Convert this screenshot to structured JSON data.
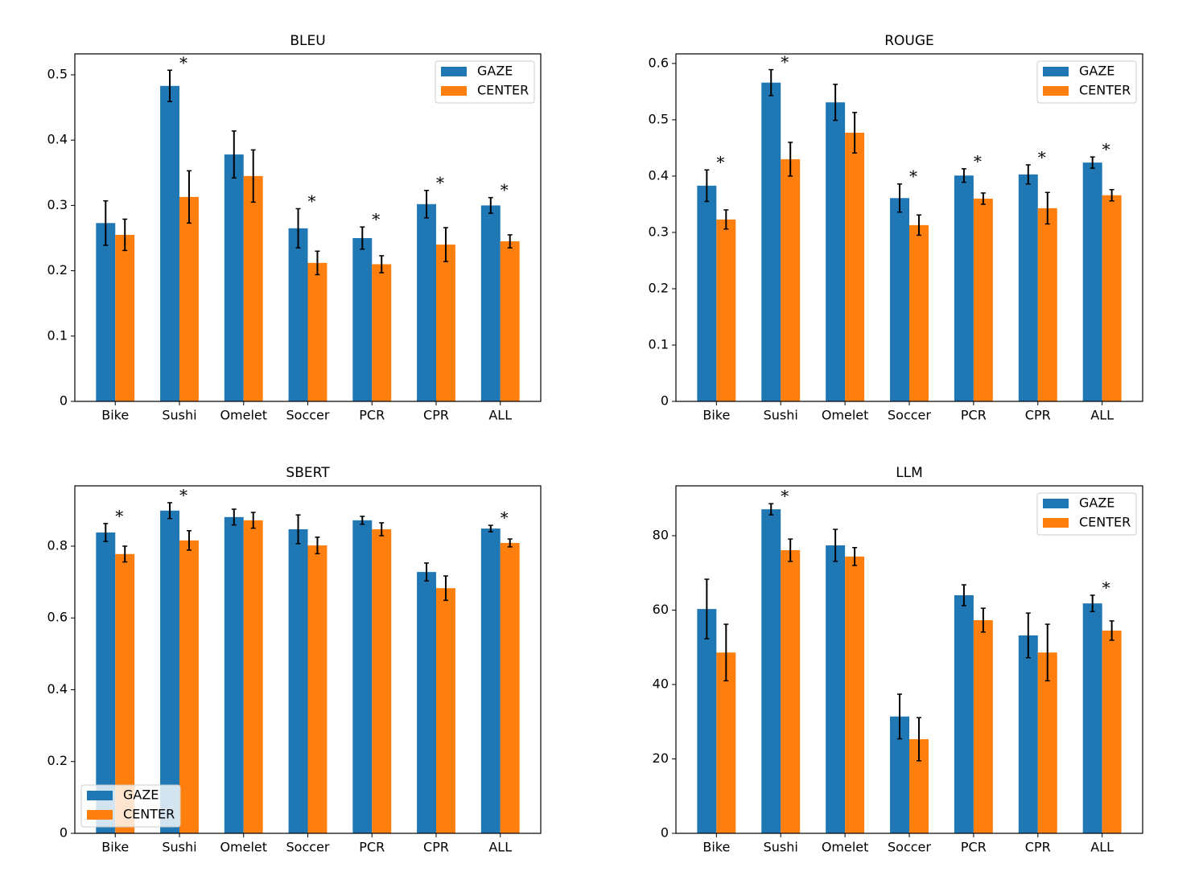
{
  "chart_data": [
    {
      "type": "bar",
      "title": "BLEU",
      "categories": [
        "Bike",
        "Sushi",
        "Omelet",
        "Soccer",
        "PCR",
        "CPR",
        "ALL"
      ],
      "series": [
        {
          "name": "GAZE",
          "color": "#1f77b4",
          "values": [
            0.273,
            0.483,
            0.378,
            0.265,
            0.25,
            0.302,
            0.3
          ],
          "errors": [
            0.034,
            0.024,
            0.036,
            0.03,
            0.017,
            0.021,
            0.012
          ]
        },
        {
          "name": "CENTER",
          "color": "#ff7f0e",
          "values": [
            0.255,
            0.313,
            0.345,
            0.212,
            0.21,
            0.24,
            0.245
          ],
          "errors": [
            0.024,
            0.04,
            0.04,
            0.018,
            0.013,
            0.026,
            0.01
          ]
        }
      ],
      "significance_labels": [
        null,
        "*",
        null,
        "*",
        "*",
        "*",
        "*"
      ],
      "ylim": [
        0,
        0.532
      ],
      "yticks": [
        0.0,
        0.1,
        0.2,
        0.3,
        0.4,
        0.5
      ],
      "legend": "upper right"
    },
    {
      "type": "bar",
      "title": "ROUGE",
      "categories": [
        "Bike",
        "Sushi",
        "Omelet",
        "Soccer",
        "PCR",
        "CPR",
        "ALL"
      ],
      "series": [
        {
          "name": "GAZE",
          "color": "#1f77b4",
          "values": [
            0.383,
            0.566,
            0.531,
            0.361,
            0.401,
            0.403,
            0.424
          ],
          "errors": [
            0.028,
            0.023,
            0.032,
            0.025,
            0.012,
            0.017,
            0.01
          ]
        },
        {
          "name": "CENTER",
          "color": "#ff7f0e",
          "values": [
            0.323,
            0.43,
            0.477,
            0.313,
            0.36,
            0.343,
            0.366
          ],
          "errors": [
            0.017,
            0.03,
            0.036,
            0.018,
            0.01,
            0.028,
            0.01
          ]
        }
      ],
      "significance_labels": [
        "*",
        "*",
        null,
        "*",
        "*",
        "*",
        "*"
      ],
      "ylim": [
        0,
        0.617
      ],
      "yticks": [
        0.0,
        0.1,
        0.2,
        0.3,
        0.4,
        0.5,
        0.6
      ],
      "legend": "upper right"
    },
    {
      "type": "bar",
      "title": "SBERT",
      "categories": [
        "Bike",
        "Sushi",
        "Omelet",
        "Soccer",
        "PCR",
        "CPR",
        "ALL"
      ],
      "series": [
        {
          "name": "GAZE",
          "color": "#1f77b4",
          "values": [
            0.838,
            0.899,
            0.881,
            0.847,
            0.872,
            0.728,
            0.849
          ],
          "errors": [
            0.025,
            0.022,
            0.022,
            0.04,
            0.011,
            0.025,
            0.009
          ]
        },
        {
          "name": "CENTER",
          "color": "#ff7f0e",
          "values": [
            0.778,
            0.816,
            0.872,
            0.802,
            0.847,
            0.683,
            0.809
          ],
          "errors": [
            0.022,
            0.027,
            0.022,
            0.023,
            0.018,
            0.034,
            0.011
          ]
        }
      ],
      "significance_labels": [
        "*",
        "*",
        null,
        null,
        null,
        null,
        "*"
      ],
      "ylim": [
        0,
        0.968
      ],
      "yticks": [
        0.0,
        0.2,
        0.4,
        0.6,
        0.8
      ],
      "legend": "lower left"
    },
    {
      "type": "bar",
      "title": "LLM",
      "categories": [
        "Bike",
        "Sushi",
        "Omelet",
        "Soccer",
        "PCR",
        "CPR",
        "ALL"
      ],
      "series": [
        {
          "name": "GAZE",
          "color": "#1f77b4",
          "values": [
            60.3,
            87.1,
            77.4,
            31.4,
            64.0,
            53.2,
            61.8
          ],
          "errors": [
            8,
            1.5,
            4.3,
            6,
            2.8,
            6,
            2.2
          ]
        },
        {
          "name": "CENTER",
          "color": "#ff7f0e",
          "values": [
            48.6,
            76.1,
            74.4,
            25.3,
            57.3,
            48.6,
            54.5
          ],
          "errors": [
            7.6,
            3,
            2.4,
            5.8,
            3.2,
            7.6,
            2.6
          ]
        }
      ],
      "significance_labels": [
        null,
        "*",
        null,
        null,
        null,
        null,
        "*"
      ],
      "ylim": [
        0,
        93.4
      ],
      "yticks": [
        0,
        20,
        40,
        60,
        80
      ],
      "legend": "upper right"
    }
  ]
}
